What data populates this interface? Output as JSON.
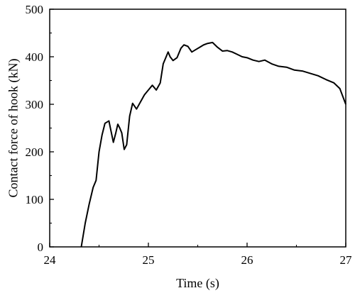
{
  "chart_data": {
    "type": "line",
    "title": "",
    "xlabel": "Time (s)",
    "ylabel": "Contact force of hook (kN)",
    "xlim": [
      24,
      27
    ],
    "ylim": [
      0,
      500
    ],
    "xticks": [
      24,
      25,
      26,
      27
    ],
    "yticks": [
      0,
      100,
      200,
      300,
      400,
      500
    ],
    "grid": false,
    "series": [
      {
        "color": "#000000",
        "x": [
          24.32,
          24.36,
          24.4,
          24.44,
          24.47,
          24.5,
          24.53,
          24.56,
          24.6,
          24.62,
          24.645,
          24.67,
          24.69,
          24.71,
          24.73,
          24.755,
          24.78,
          24.81,
          24.84,
          24.88,
          24.92,
          24.96,
          25.0,
          25.04,
          25.08,
          25.12,
          25.15,
          25.17,
          25.2,
          25.22,
          25.25,
          25.29,
          25.33,
          25.36,
          25.4,
          25.44,
          25.48,
          25.52,
          25.56,
          25.6,
          25.65,
          25.7,
          25.75,
          25.8,
          25.85,
          25.9,
          25.95,
          26.0,
          26.06,
          26.12,
          26.18,
          26.25,
          26.32,
          26.4,
          26.48,
          26.56,
          26.64,
          26.72,
          26.8,
          26.88,
          26.94,
          27.0
        ],
        "y": [
          0,
          50,
          90,
          125,
          140,
          200,
          235,
          260,
          265,
          245,
          220,
          240,
          258,
          250,
          240,
          205,
          215,
          275,
          302,
          290,
          305,
          320,
          330,
          340,
          330,
          345,
          385,
          395,
          410,
          400,
          392,
          398,
          418,
          425,
          422,
          410,
          415,
          420,
          425,
          428,
          430,
          420,
          412,
          413,
          410,
          405,
          400,
          398,
          393,
          390,
          393,
          385,
          380,
          378,
          372,
          370,
          365,
          360,
          352,
          345,
          333,
          300
        ]
      }
    ]
  }
}
